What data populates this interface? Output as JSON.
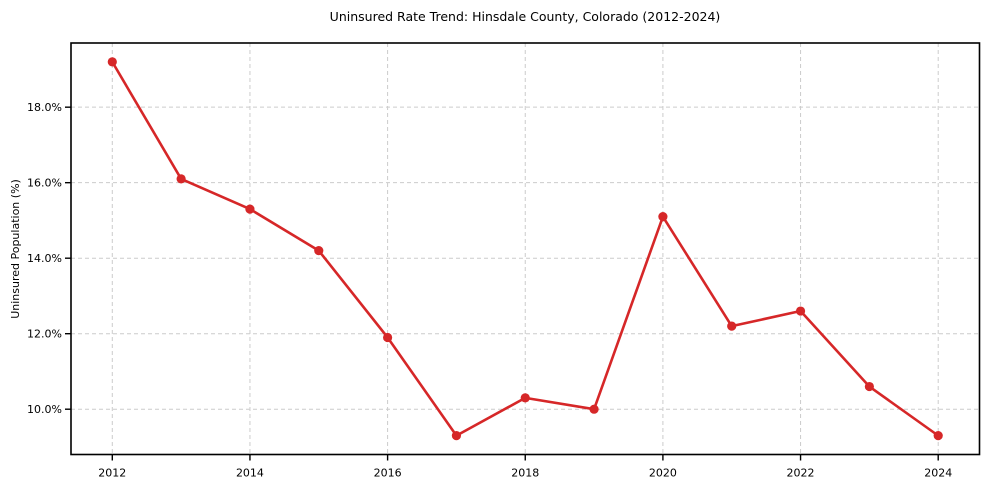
{
  "chart_data": {
    "type": "line",
    "title": "Uninsured Rate Trend: Hinsdale County, Colorado (2012-2024)",
    "xlabel": "",
    "ylabel": "Uninsured Population (%)",
    "x": [
      2012,
      2013,
      2014,
      2015,
      2016,
      2017,
      2018,
      2019,
      2020,
      2021,
      2022,
      2023,
      2024
    ],
    "values": [
      19.2,
      16.1,
      15.3,
      14.2,
      11.9,
      9.3,
      10.3,
      10.0,
      15.1,
      12.2,
      12.6,
      10.6,
      9.3
    ],
    "xlim": [
      2011.4,
      2024.6
    ],
    "ylim": [
      8.8,
      19.7
    ],
    "xticks": [
      {
        "value": 2012,
        "label": "2012"
      },
      {
        "value": 2014,
        "label": "2014"
      },
      {
        "value": 2016,
        "label": "2016"
      },
      {
        "value": 2018,
        "label": "2018"
      },
      {
        "value": 2020,
        "label": "2020"
      },
      {
        "value": 2022,
        "label": "2022"
      },
      {
        "value": 2024,
        "label": "2024"
      }
    ],
    "yticks": [
      {
        "value": 10,
        "label": "10.0%"
      },
      {
        "value": 12,
        "label": "12.0%"
      },
      {
        "value": 14,
        "label": "14.0%"
      },
      {
        "value": 16,
        "label": "16.0%"
      },
      {
        "value": 18,
        "label": "18.0%"
      }
    ],
    "grid": true,
    "grid_style": "dashed",
    "legend_position": "none",
    "marker": "circle",
    "colors": {
      "line": "#d62728",
      "marker": "#d62728",
      "grid": "#cccccc",
      "axis": "#000000",
      "background": "#ffffff",
      "text": "#000000"
    }
  }
}
